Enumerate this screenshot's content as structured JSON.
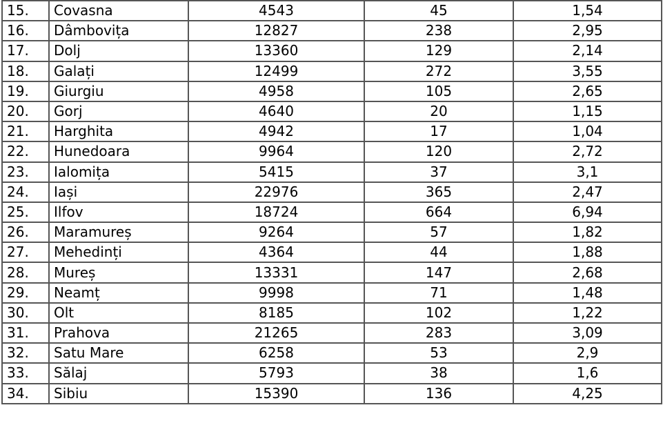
{
  "table": {
    "rows": [
      {
        "nr": "15.",
        "judet": "Covasna",
        "v1": "4543",
        "v2": "45",
        "v3": "1,54"
      },
      {
        "nr": "16.",
        "judet": "Dâmbovița",
        "v1": "12827",
        "v2": "238",
        "v3": "2,95"
      },
      {
        "nr": "17.",
        "judet": "Dolj",
        "v1": "13360",
        "v2": "129",
        "v3": "2,14"
      },
      {
        "nr": "18.",
        "judet": "Galați",
        "v1": "12499",
        "v2": "272",
        "v3": "3,55"
      },
      {
        "nr": "19.",
        "judet": "Giurgiu",
        "v1": "4958",
        "v2": "105",
        "v3": "2,65"
      },
      {
        "nr": "20.",
        "judet": "Gorj",
        "v1": "4640",
        "v2": "20",
        "v3": "1,15"
      },
      {
        "nr": "21.",
        "judet": "Harghita",
        "v1": "4942",
        "v2": "17",
        "v3": "1,04"
      },
      {
        "nr": "22.",
        "judet": "Hunedoara",
        "v1": "9964",
        "v2": "120",
        "v3": "2,72"
      },
      {
        "nr": "23.",
        "judet": "Ialomița",
        "v1": "5415",
        "v2": "37",
        "v3": "3,1"
      },
      {
        "nr": "24.",
        "judet": "Iași",
        "v1": "22976",
        "v2": "365",
        "v3": "2,47"
      },
      {
        "nr": "25.",
        "judet": "Ilfov",
        "v1": "18724",
        "v2": "664",
        "v3": "6,94"
      },
      {
        "nr": "26.",
        "judet": "Maramureș",
        "v1": "9264",
        "v2": "57",
        "v3": "1,82"
      },
      {
        "nr": "27.",
        "judet": "Mehedinți",
        "v1": "4364",
        "v2": "44",
        "v3": "1,88"
      },
      {
        "nr": "28.",
        "judet": "Mureș",
        "v1": "13331",
        "v2": "147",
        "v3": "2,68"
      },
      {
        "nr": "29.",
        "judet": "Neamț",
        "v1": "9998",
        "v2": "71",
        "v3": "1,48"
      },
      {
        "nr": "30.",
        "judet": "Olt",
        "v1": "8185",
        "v2": "102",
        "v3": "1,22"
      },
      {
        "nr": "31.",
        "judet": "Prahova",
        "v1": "21265",
        "v2": "283",
        "v3": "3,09"
      },
      {
        "nr": "32.",
        "judet": "Satu Mare",
        "v1": "6258",
        "v2": "53",
        "v3": "2,9"
      },
      {
        "nr": "33.",
        "judet": "Sălaj",
        "v1": "5793",
        "v2": "38",
        "v3": "1,6"
      },
      {
        "nr": "34.",
        "judet": "Sibiu",
        "v1": "15390",
        "v2": "136",
        "v3": "4,25"
      }
    ]
  }
}
